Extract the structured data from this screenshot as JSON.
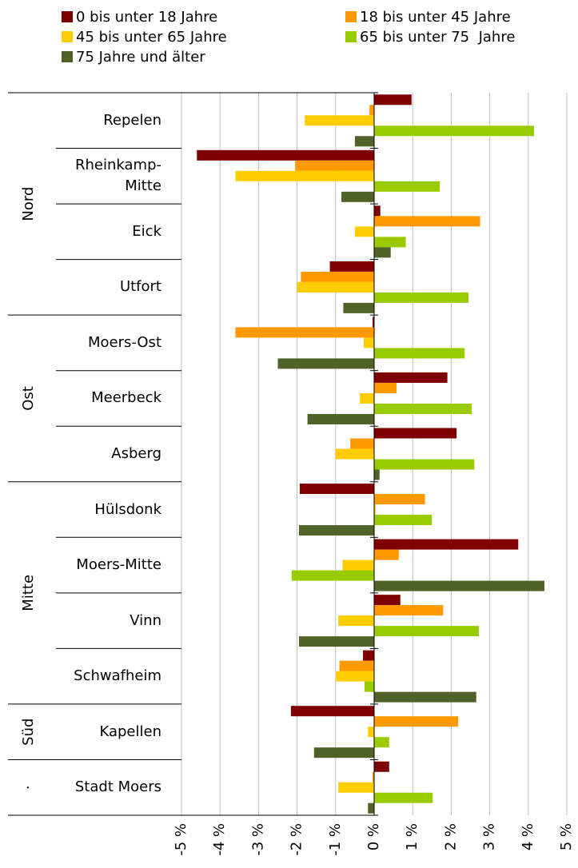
{
  "chart_data": {
    "type": "hbar",
    "categories": [
      "Repelen",
      "Rheinkamp-Mitte",
      "Eick",
      "Utfort",
      "Moers-Ost",
      "Meerbeck",
      "Asberg",
      "Hülsdonk",
      "Moers-Mitte",
      "Vinn",
      "Schwafheim",
      "Kapellen",
      "Stadt Moers"
    ],
    "groups": [
      {
        "name": "Nord",
        "count": 4
      },
      {
        "name": "Ost",
        "count": 3
      },
      {
        "name": "Mitte",
        "count": 4
      },
      {
        "name": "Süd",
        "count": 1
      },
      {
        "name": "·",
        "count": 1
      }
    ],
    "series": [
      {
        "name": "0 bis unter 18 Jahre",
        "color": "#7f0000",
        "values": [
          0.97,
          -4.6,
          0.16,
          -1.15,
          -0.04,
          1.9,
          2.14,
          -1.93,
          3.74,
          0.68,
          -0.29,
          -2.16,
          0.39
        ]
      },
      {
        "name": "18 bis unter 45 Jahre",
        "color": "#ff9900",
        "values": [
          -0.12,
          -2.05,
          2.75,
          -1.9,
          -3.6,
          0.58,
          -0.62,
          1.32,
          0.64,
          1.79,
          -0.9,
          2.18,
          -0.04
        ]
      },
      {
        "name": "45 bis unter 65 Jahre",
        "color": "#ffcc00",
        "values": [
          -1.8,
          -3.6,
          -0.5,
          -2.0,
          -0.27,
          -0.37,
          -1.0,
          0.04,
          -0.82,
          -0.93,
          -0.99,
          -0.16,
          -0.93
        ]
      },
      {
        "name": "65 bis unter 75  Jahre",
        "color": "#99cc00",
        "values": [
          4.15,
          1.7,
          0.82,
          2.45,
          2.35,
          2.53,
          2.6,
          1.5,
          -2.14,
          2.72,
          -0.25,
          0.39,
          1.52
        ]
      },
      {
        "name": "75 Jahre und älter",
        "color": "#4f6228",
        "values": [
          -0.5,
          -0.85,
          0.43,
          -0.8,
          -2.5,
          -1.73,
          0.14,
          -1.95,
          4.42,
          -1.95,
          2.65,
          -1.56,
          -0.16
        ]
      }
    ],
    "xlim": [
      -5,
      5
    ],
    "xticks": [
      {
        "value": -5,
        "label": "-5 %"
      },
      {
        "value": -4,
        "label": "-4 %"
      },
      {
        "value": -3,
        "label": "-3 %"
      },
      {
        "value": -2,
        "label": "-2 %"
      },
      {
        "value": -1,
        "label": "-1 %"
      },
      {
        "value": 0,
        "label": "0 %"
      },
      {
        "value": 1,
        "label": "1 %"
      },
      {
        "value": 2,
        "label": "2 %"
      },
      {
        "value": 3,
        "label": "3 %"
      },
      {
        "value": 4,
        "label": "4 %"
      },
      {
        "value": 5,
        "label": "5 %"
      }
    ],
    "grid": true
  }
}
